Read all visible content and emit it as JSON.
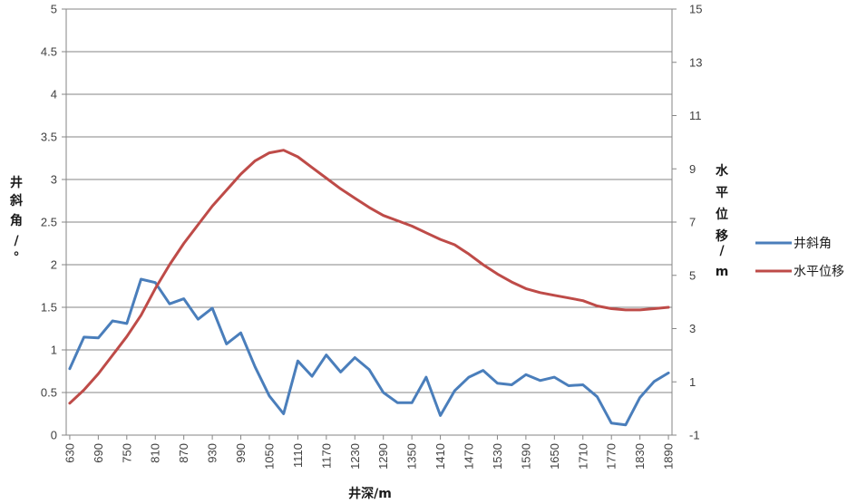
{
  "chart_data": {
    "type": "line",
    "x_unit": "m",
    "x": [
      630,
      645,
      660,
      675,
      690,
      705,
      720,
      735,
      750,
      765,
      780,
      795,
      810,
      825,
      840,
      855,
      870,
      885,
      900,
      915,
      930,
      945,
      960,
      975,
      990,
      1005,
      1020,
      1035,
      1050,
      1065,
      1080,
      1095,
      1110,
      1125,
      1140,
      1155,
      1170,
      1185,
      1200,
      1215,
      1230,
      1245,
      1260,
      1275,
      1290,
      1305,
      1320,
      1335,
      1350,
      1365,
      1380,
      1395,
      1410,
      1425,
      1440,
      1455,
      1470,
      1485,
      1500,
      1515,
      1530,
      1545,
      1560,
      1575,
      1590,
      1605,
      1620,
      1635,
      1650,
      1665,
      1680,
      1695,
      1710,
      1725,
      1740,
      1755,
      1770,
      1785,
      1800,
      1815,
      1830,
      1845,
      1860,
      1875,
      1890
    ],
    "x_tick_labels": [
      "630",
      "690",
      "750",
      "810",
      "870",
      "930",
      "990",
      "1050",
      "1110",
      "1170",
      "1230",
      "1290",
      "1350",
      "1410",
      "1470",
      "1530",
      "1590",
      "1650",
      "1710",
      "1770",
      "1830",
      "1890"
    ],
    "xlabel": "井深/m",
    "ylabel_left": "井斜角/°",
    "ylabel_left_chars": [
      "井",
      "斜",
      "角",
      "/",
      "°"
    ],
    "ylabel_right": "水平位移/m",
    "ylabel_right_chars": [
      "水",
      "平",
      "位",
      "移",
      "/",
      "m"
    ],
    "ylim_left": [
      0,
      5
    ],
    "y_ticks_left": [
      "0",
      "0.5",
      "1",
      "1.5",
      "2",
      "2.5",
      "3",
      "3.5",
      "4",
      "4.5",
      "5"
    ],
    "ylim_right": [
      -1,
      15
    ],
    "y_ticks_right": [
      "-1",
      "1",
      "3",
      "5",
      "7",
      "9",
      "11",
      "13",
      "15"
    ],
    "grid": "horizontal",
    "legend_position": "right",
    "series": [
      {
        "name": "井斜角",
        "axis": "left",
        "color": "#4a7ebb",
        "x": [
          630,
          660,
          690,
          720,
          750,
          780,
          810,
          840,
          870,
          900,
          930,
          960,
          990,
          1020,
          1050,
          1080,
          1110,
          1140,
          1170,
          1200,
          1230,
          1260,
          1290,
          1320,
          1350,
          1380,
          1410,
          1440,
          1470,
          1500,
          1530,
          1560,
          1590,
          1620,
          1650,
          1680,
          1710,
          1740,
          1770,
          1800,
          1830,
          1860,
          1890
        ],
        "values": [
          0.78,
          1.15,
          1.14,
          1.34,
          1.31,
          1.83,
          1.79,
          1.54,
          1.6,
          1.36,
          1.49,
          1.07,
          1.2,
          0.8,
          0.46,
          0.25,
          0.87,
          0.69,
          0.94,
          0.74,
          0.91,
          0.77,
          0.5,
          0.38,
          0.38,
          0.68,
          0.23,
          0.52,
          0.68,
          0.76,
          0.61,
          0.59,
          0.71,
          0.64,
          0.68,
          0.58,
          0.59,
          0.45,
          0.14,
          0.12,
          0.44,
          0.63,
          0.73
        ]
      },
      {
        "name": "水平位移",
        "axis": "right",
        "color": "#be4b48",
        "x": [
          630,
          660,
          690,
          720,
          750,
          780,
          810,
          840,
          870,
          900,
          930,
          960,
          990,
          1020,
          1050,
          1080,
          1110,
          1140,
          1170,
          1200,
          1230,
          1260,
          1290,
          1320,
          1350,
          1380,
          1410,
          1440,
          1470,
          1500,
          1530,
          1560,
          1590,
          1620,
          1650,
          1680,
          1710,
          1740,
          1770,
          1800,
          1830,
          1860,
          1890
        ],
        "values": [
          0.2,
          0.7,
          1.3,
          2.0,
          2.7,
          3.5,
          4.5,
          5.4,
          6.2,
          6.9,
          7.6,
          8.2,
          8.8,
          9.3,
          9.6,
          9.7,
          9.45,
          9.05,
          8.65,
          8.25,
          7.9,
          7.55,
          7.25,
          7.05,
          6.85,
          6.6,
          6.35,
          6.15,
          5.8,
          5.4,
          5.05,
          4.75,
          4.5,
          4.35,
          4.25,
          4.15,
          4.05,
          3.85,
          3.75,
          3.7,
          3.7,
          3.75,
          3.8
        ]
      }
    ]
  }
}
